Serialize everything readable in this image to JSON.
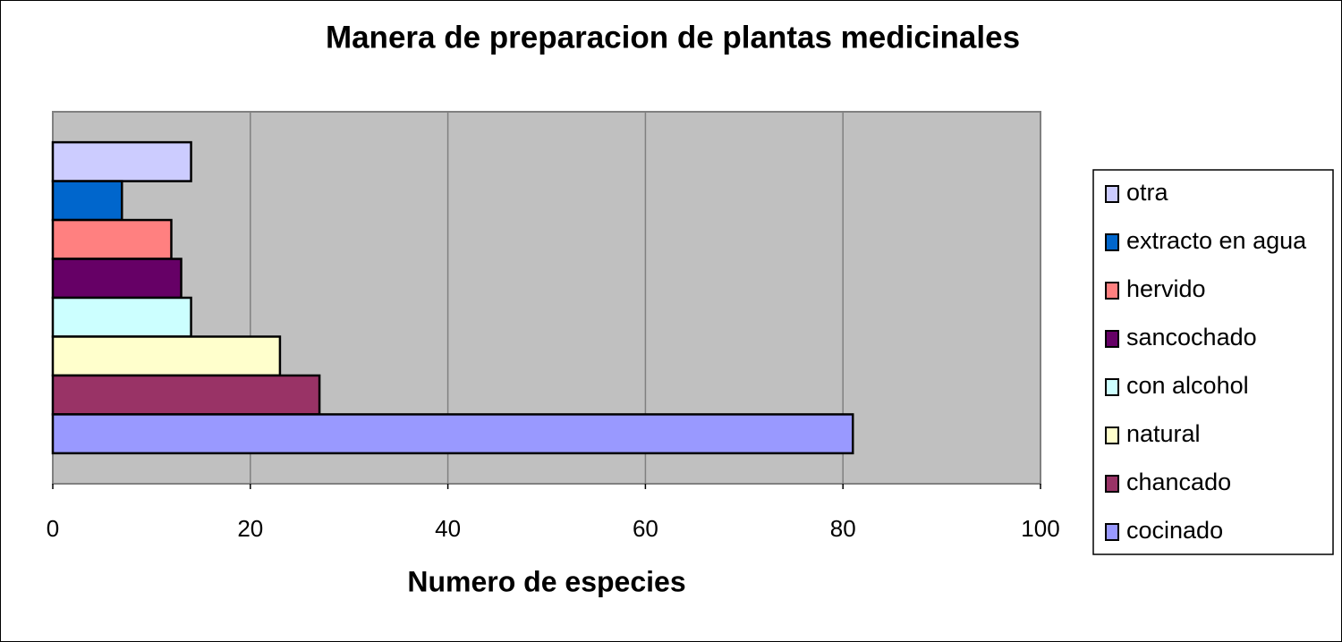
{
  "chart_data": {
    "type": "bar",
    "orientation": "horizontal",
    "title": "Manera de preparacion de plantas medicinales",
    "x_label": "Numero de especies",
    "categories": [
      null
    ],
    "series": [
      {
        "name": "otra",
        "color": "#ccccff",
        "values": [
          14
        ]
      },
      {
        "name": "extracto en agua",
        "color": "#0066cc",
        "values": [
          7
        ]
      },
      {
        "name": "hervido",
        "color": "#ff8080",
        "values": [
          12
        ]
      },
      {
        "name": "sancochado",
        "color": "#660066",
        "values": [
          13
        ]
      },
      {
        "name": "con alcohol",
        "color": "#ccffff",
        "values": [
          14
        ]
      },
      {
        "name": "natural",
        "color": "#ffffcc",
        "values": [
          23
        ]
      },
      {
        "name": "chancado",
        "color": "#993366",
        "values": [
          27
        ]
      },
      {
        "name": "cocinado",
        "color": "#9999ff",
        "values": [
          81
        ]
      }
    ],
    "xlim": [
      0,
      100
    ],
    "xticks": [
      0,
      20,
      40,
      60,
      80,
      100
    ],
    "grid": true,
    "legend": "right"
  }
}
